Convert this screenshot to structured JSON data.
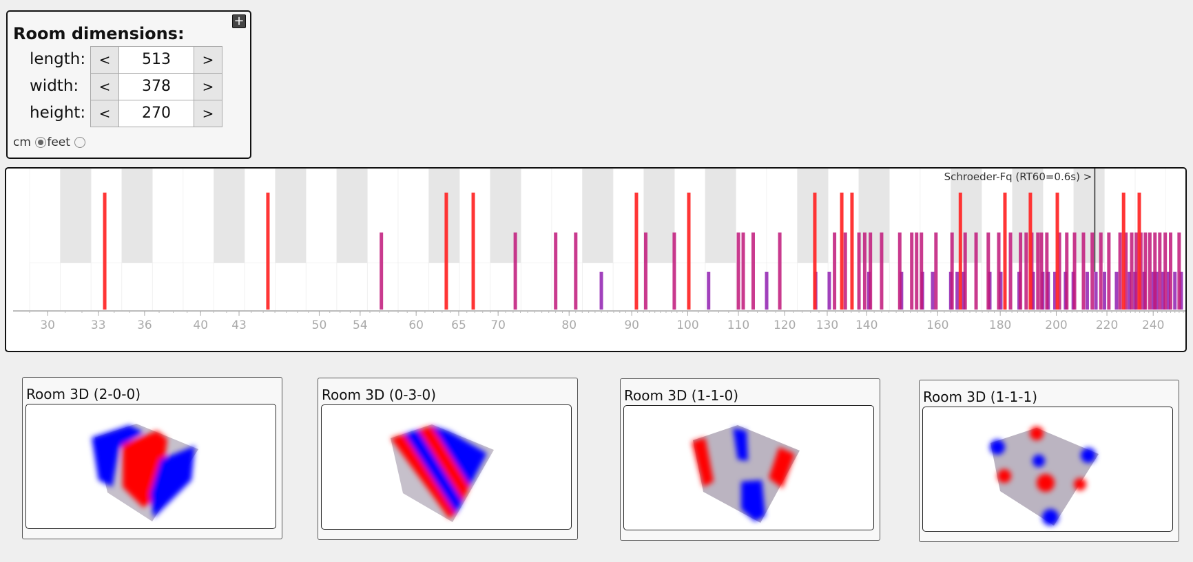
{
  "dimensions_panel": {
    "title": "Room dimensions:",
    "add_label": "+",
    "rows": [
      {
        "label": "length:",
        "value": "513",
        "dec": "<",
        "inc": ">"
      },
      {
        "label": "width:",
        "value": "378",
        "dec": "<",
        "inc": ">"
      },
      {
        "label": "height:",
        "value": "270",
        "dec": "<",
        "inc": ">"
      }
    ],
    "units": {
      "cm_label": "cm",
      "feet_label": "feet",
      "selected": "cm"
    }
  },
  "mode_graph": {
    "schroeder_label": "Schroeder-Fq (RT60=0.6s) >",
    "schroeder_freq": 215,
    "x_ticks": [
      30,
      33,
      36,
      40,
      43,
      50,
      54,
      60,
      65,
      70,
      80,
      90,
      100,
      110,
      120,
      130,
      140,
      160,
      180,
      200,
      220,
      240
    ],
    "x_range": [
      29,
      255
    ],
    "colors": {
      "axial": "#ff2a2a",
      "tangential": "#c0187a",
      "oblique": "#9020b0"
    },
    "modes": {
      "axial": [
        33.4,
        45.4,
        63.5,
        66.8,
        90.8,
        100.2,
        127.0,
        133.6,
        136.2,
        167.0,
        181.6,
        190.5,
        200.4,
        227.0,
        233.8
      ],
      "tangential": [
        56.2,
        72.3,
        78.0,
        81.0,
        92.4,
        97.5,
        110.0,
        111.0,
        113.1,
        118.9,
        131.8,
        134.5,
        138.0,
        139.5,
        141.0,
        144.0,
        149.0,
        152.4,
        153.8,
        155.2,
        159.5,
        164.4,
        168.5,
        172.0,
        176.0,
        179.5,
        183.5,
        187.0,
        189.0,
        191.0,
        193.2,
        194.5,
        196.5,
        201.2,
        204.0,
        207.0,
        210.5,
        214.0,
        217.5,
        220.8,
        225.5,
        228.0,
        230.5,
        232.5,
        234.5,
        236.5,
        238.5,
        240.8,
        243.0,
        245.5,
        248.0,
        252.0
      ],
      "oblique": [
        85.0,
        104.0,
        116.0,
        127.2,
        130.5,
        140.6,
        149.5,
        155.5,
        158.5,
        164.0,
        166.0,
        168.0,
        176.5,
        180.2,
        186.5,
        191.5,
        195.0,
        197.0,
        199.5,
        203.5,
        206.5,
        212.0,
        215.5,
        219.0,
        224.0,
        229.5,
        232.0,
        236.0,
        240.0,
        241.5,
        244.5,
        247.0,
        250.0,
        253.0
      ]
    }
  },
  "rooms": [
    {
      "title": "Room 3D (2-0-0)",
      "mode": "2-0-0"
    },
    {
      "title": "Room 3D (0-3-0)",
      "mode": "0-3-0"
    },
    {
      "title": "Room 3D (1-1-0)",
      "mode": "1-1-0"
    },
    {
      "title": "Room 3D (1-1-1)",
      "mode": "1-1-1"
    }
  ]
}
